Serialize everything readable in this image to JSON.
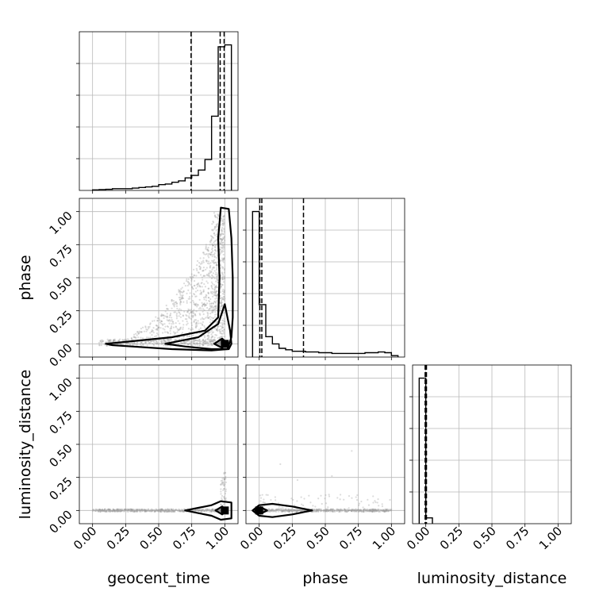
{
  "figure": {
    "title": "",
    "type": "corner-plot"
  },
  "chart_data": [
    {
      "type": "histogram",
      "panel": "geocent_time",
      "xlim": [
        -0.1,
        1.1
      ],
      "bins": [
        {
          "x": [
            0.0,
            0.05
          ],
          "h": 0.004
        },
        {
          "x": [
            0.05,
            0.1
          ],
          "h": 0.006
        },
        {
          "x": [
            0.1,
            0.15
          ],
          "h": 0.008
        },
        {
          "x": [
            0.15,
            0.2
          ],
          "h": 0.012
        },
        {
          "x": [
            0.2,
            0.25
          ],
          "h": 0.012
        },
        {
          "x": [
            0.25,
            0.3
          ],
          "h": 0.012
        },
        {
          "x": [
            0.3,
            0.35
          ],
          "h": 0.016
        },
        {
          "x": [
            0.35,
            0.4
          ],
          "h": 0.02
        },
        {
          "x": [
            0.4,
            0.45
          ],
          "h": 0.024
        },
        {
          "x": [
            0.45,
            0.5
          ],
          "h": 0.028
        },
        {
          "x": [
            0.5,
            0.55
          ],
          "h": 0.04
        },
        {
          "x": [
            0.55,
            0.6
          ],
          "h": 0.044
        },
        {
          "x": [
            0.6,
            0.65
          ],
          "h": 0.056
        },
        {
          "x": [
            0.65,
            0.7
          ],
          "h": 0.066
        },
        {
          "x": [
            0.7,
            0.75
          ],
          "h": 0.086
        },
        {
          "x": [
            0.75,
            0.8
          ],
          "h": 0.103
        },
        {
          "x": [
            0.8,
            0.85
          ],
          "h": 0.14
        },
        {
          "x": [
            0.85,
            0.9
          ],
          "h": 0.212
        },
        {
          "x": [
            0.9,
            0.95
          ],
          "h": 0.51
        },
        {
          "x": [
            0.95,
            1.0
          ],
          "h": 0.987
        },
        {
          "x": [
            1.0,
            1.05
          ],
          "h": 1.0
        }
      ],
      "quantiles": [
        0.745,
        0.965,
        0.995
      ],
      "grid": true
    },
    {
      "type": "histogram",
      "panel": "phase",
      "xlim": [
        -0.1,
        1.1
      ],
      "bins": [
        {
          "x": [
            -0.05,
            0.0
          ],
          "h": 1.0
        },
        {
          "x": [
            0.0,
            0.05
          ],
          "h": 0.36
        },
        {
          "x": [
            0.05,
            0.1
          ],
          "h": 0.14
        },
        {
          "x": [
            0.1,
            0.15
          ],
          "h": 0.09
        },
        {
          "x": [
            0.15,
            0.2
          ],
          "h": 0.06
        },
        {
          "x": [
            0.2,
            0.25
          ],
          "h": 0.05
        },
        {
          "x": [
            0.25,
            0.3
          ],
          "h": 0.04
        },
        {
          "x": [
            0.3,
            0.35
          ],
          "h": 0.04
        },
        {
          "x": [
            0.35,
            0.4
          ],
          "h": 0.035
        },
        {
          "x": [
            0.4,
            0.45
          ],
          "h": 0.035
        },
        {
          "x": [
            0.45,
            0.5
          ],
          "h": 0.03
        },
        {
          "x": [
            0.5,
            0.55
          ],
          "h": 0.03
        },
        {
          "x": [
            0.55,
            0.6
          ],
          "h": 0.025
        },
        {
          "x": [
            0.6,
            0.65
          ],
          "h": 0.025
        },
        {
          "x": [
            0.65,
            0.7
          ],
          "h": 0.025
        },
        {
          "x": [
            0.7,
            0.75
          ],
          "h": 0.025
        },
        {
          "x": [
            0.75,
            0.8
          ],
          "h": 0.025
        },
        {
          "x": [
            0.8,
            0.85
          ],
          "h": 0.03
        },
        {
          "x": [
            0.85,
            0.9
          ],
          "h": 0.03
        },
        {
          "x": [
            0.9,
            0.95
          ],
          "h": 0.035
        },
        {
          "x": [
            0.95,
            1.0
          ],
          "h": 0.03
        },
        {
          "x": [
            1.0,
            1.05
          ],
          "h": 0.01
        }
      ],
      "quantiles": [
        0.005,
        0.02,
        0.335
      ],
      "grid": true
    },
    {
      "type": "histogram",
      "panel": "luminosity_distance",
      "xlim": [
        -0.1,
        1.1
      ],
      "xticks": [
        "0.00",
        "0.25",
        "0.50",
        "0.75",
        "1.00"
      ],
      "xlabel": "luminosity_distance",
      "bins": [
        {
          "x": [
            -0.05,
            0.0
          ],
          "h": 1.0
        },
        {
          "x": [
            0.0,
            0.05
          ],
          "h": 0.04
        }
      ],
      "quantiles": [
        -0.005,
        0.0,
        0.005
      ],
      "grid": true
    },
    {
      "type": "scatter-contour",
      "panel": "phase vs geocent_time",
      "xlim": [
        -0.1,
        1.1
      ],
      "ylim": [
        -0.1,
        1.1
      ],
      "ylabel": "phase",
      "yticks": [
        "0.00",
        "0.25",
        "0.50",
        "0.75",
        "1.00"
      ],
      "grid": true,
      "contours": [
        [
          [
            0.1,
            0.0
          ],
          [
            0.3,
            0.02
          ],
          [
            0.6,
            0.05
          ],
          [
            0.85,
            0.1
          ],
          [
            0.95,
            0.2
          ],
          [
            0.96,
            0.5
          ],
          [
            0.95,
            0.8
          ],
          [
            0.97,
            1.03
          ],
          [
            1.03,
            1.02
          ],
          [
            1.05,
            0.8
          ],
          [
            1.06,
            0.5
          ],
          [
            1.06,
            0.2
          ],
          [
            1.05,
            0.05
          ],
          [
            1.02,
            -0.04
          ],
          [
            0.9,
            -0.05
          ],
          [
            0.6,
            -0.04
          ],
          [
            0.3,
            -0.02
          ],
          [
            0.15,
            -0.01
          ],
          [
            0.1,
            0.0
          ]
        ],
        [
          [
            0.55,
            0.0
          ],
          [
            0.8,
            0.05
          ],
          [
            0.95,
            0.15
          ],
          [
            1.0,
            0.3
          ],
          [
            1.04,
            0.1
          ],
          [
            1.05,
            0.0
          ],
          [
            1.03,
            -0.04
          ],
          [
            0.9,
            -0.04
          ],
          [
            0.7,
            -0.02
          ],
          [
            0.55,
            0.0
          ]
        ],
        [
          [
            0.92,
            0.0
          ],
          [
            0.98,
            0.04
          ],
          [
            1.02,
            0.0
          ],
          [
            0.98,
            -0.03
          ],
          [
            0.92,
            0.0
          ]
        ]
      ],
      "core": [
        1.0,
        0.0
      ]
    },
    {
      "type": "scatter-contour",
      "panel": "luminosity_distance vs geocent_time",
      "xlim": [
        -0.1,
        1.1
      ],
      "ylim": [
        -0.1,
        1.1
      ],
      "xlabel": "geocent_time",
      "ylabel": "luminosity_distance",
      "xticks": [
        "0.00",
        "0.25",
        "0.50",
        "0.75",
        "1.00"
      ],
      "yticks": [
        "0.00",
        "0.25",
        "0.50",
        "0.75",
        "1.00"
      ],
      "grid": true,
      "contours": [
        [
          [
            0.7,
            0.0
          ],
          [
            0.8,
            0.02
          ],
          [
            0.9,
            0.04
          ],
          [
            0.97,
            0.07
          ],
          [
            1.05,
            0.06
          ],
          [
            1.05,
            0.0
          ],
          [
            1.05,
            -0.06
          ],
          [
            0.97,
            -0.07
          ],
          [
            0.9,
            -0.04
          ],
          [
            0.8,
            -0.02
          ],
          [
            0.7,
            0.0
          ]
        ],
        [
          [
            0.93,
            0.0
          ],
          [
            0.98,
            0.03
          ],
          [
            1.02,
            0.0
          ],
          [
            0.98,
            -0.03
          ],
          [
            0.93,
            0.0
          ]
        ]
      ],
      "core": [
        1.0,
        0.0
      ]
    },
    {
      "type": "scatter-contour",
      "panel": "luminosity_distance vs phase",
      "xlim": [
        -0.1,
        1.1
      ],
      "ylim": [
        -0.1,
        1.1
      ],
      "xlabel": "phase",
      "xticks": [
        "0.00",
        "0.25",
        "0.50",
        "0.75",
        "1.00"
      ],
      "grid": true,
      "contours": [
        [
          [
            -0.05,
            0.0
          ],
          [
            0.0,
            0.04
          ],
          [
            0.1,
            0.05
          ],
          [
            0.25,
            0.03
          ],
          [
            0.4,
            0.0
          ],
          [
            0.25,
            -0.03
          ],
          [
            0.1,
            -0.05
          ],
          [
            0.0,
            -0.04
          ],
          [
            -0.05,
            0.0
          ]
        ],
        [
          [
            -0.03,
            0.0
          ],
          [
            0.01,
            0.025
          ],
          [
            0.06,
            0.0
          ],
          [
            0.01,
            -0.025
          ],
          [
            -0.03,
            0.0
          ]
        ]
      ],
      "core": [
        0.0,
        0.0
      ]
    }
  ]
}
